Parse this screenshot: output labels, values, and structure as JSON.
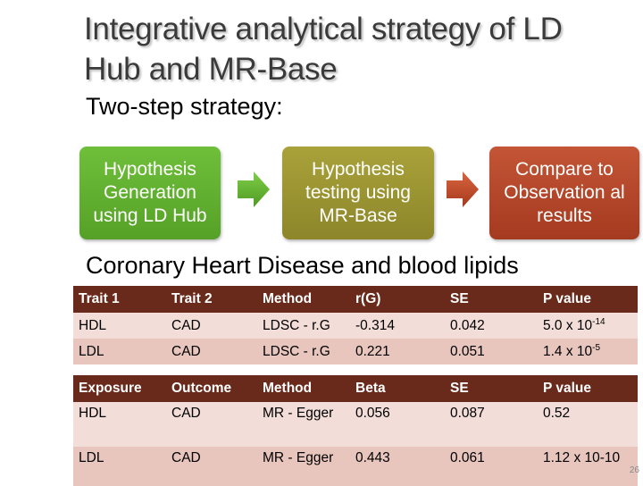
{
  "title": "Integrative analytical strategy of LD Hub and MR-Base",
  "subtitle": "Two-step strategy:",
  "steps": [
    {
      "label": "Hypothesis Generation using LD Hub",
      "color": "#5fae30"
    },
    {
      "label": "Hypothesis testing using MR-Base",
      "color": "#9a9330"
    },
    {
      "label": "Compare to Observation al results",
      "color": "#b4472a"
    }
  ],
  "section_heading": "Coronary Heart Disease and blood lipids",
  "table1": {
    "headers": [
      "Trait 1",
      "Trait 2",
      "Method",
      "r(G)",
      "SE",
      "P value"
    ],
    "rows": [
      {
        "c1": "HDL",
        "c2": "CAD",
        "c3": "LDSC - r.G",
        "c4": "-0.314",
        "c5": "0.042",
        "p_base": "5.0 x 10",
        "p_exp": "-14"
      },
      {
        "c1": "LDL",
        "c2": "CAD",
        "c3": "LDSC - r.G",
        "c4": "0.221",
        "c5": "0.051",
        "p_base": "1.4 x 10",
        "p_exp": "-5"
      }
    ]
  },
  "table2": {
    "headers": [
      "Exposure",
      "Outcome",
      "Method",
      "Beta",
      "SE",
      "P value"
    ],
    "rows": [
      {
        "c1": "HDL",
        "c2": "CAD",
        "c3": "MR - Egger",
        "c4": "0.056",
        "c5": "0.087",
        "p": "0.52"
      },
      {
        "c1": "LDL",
        "c2": "CAD",
        "c3": "MR - Egger",
        "c4": "0.443",
        "c5": "0.061",
        "p": "1.12 x 10-10"
      }
    ]
  },
  "page_number": "26",
  "colors": {
    "header_bg": "#6a2a1b",
    "row_light": "#f2ddd8",
    "row_dark": "#e8c6be"
  }
}
